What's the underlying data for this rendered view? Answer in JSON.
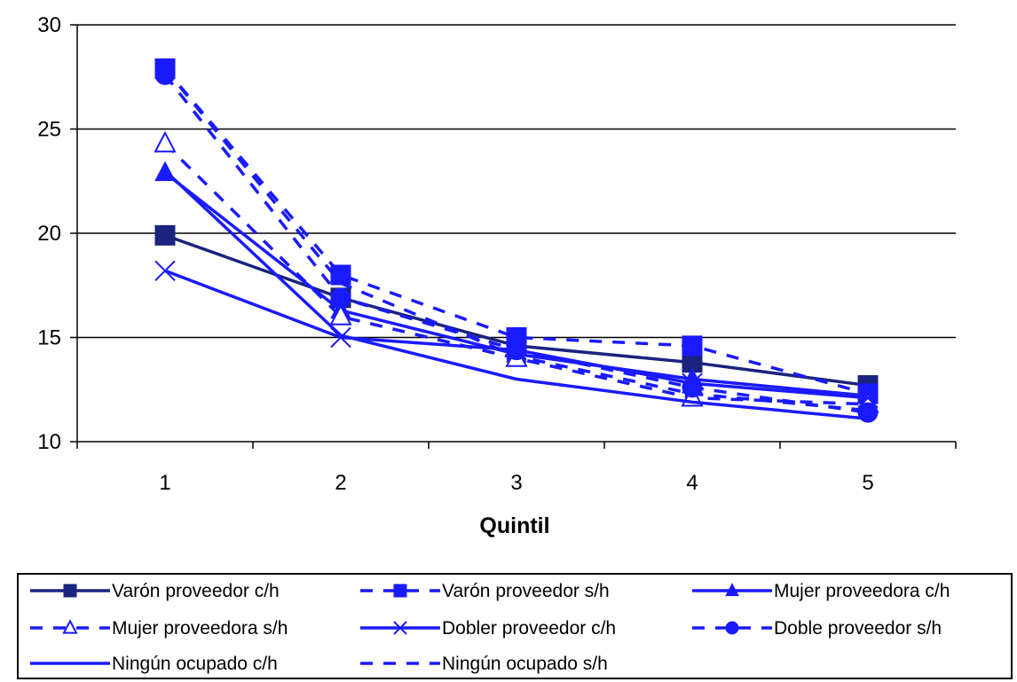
{
  "chart_data": {
    "type": "line",
    "title": "",
    "xlabel": "Quintil",
    "ylabel": "",
    "x": [
      1,
      2,
      3,
      4,
      5
    ],
    "ylim": [
      10,
      30
    ],
    "yticks": [
      10,
      15,
      20,
      25,
      30
    ],
    "grid": "horizontal",
    "legend_position": "bottom",
    "series": [
      {
        "name": "Varón proveedor c/h",
        "values": [
          19.9,
          16.9,
          14.6,
          13.8,
          12.7
        ],
        "color": "#1a237e",
        "dash": "solid",
        "marker": "square-filled"
      },
      {
        "name": "Varón proveedor s/h",
        "values": [
          27.9,
          18.0,
          15.0,
          14.6,
          12.3
        ],
        "color": "#1a1aff",
        "dash": "dashed",
        "marker": "square-filled"
      },
      {
        "name": "Mujer proveedora c/h",
        "values": [
          22.9,
          16.3,
          14.2,
          13.0,
          12.2
        ],
        "color": "#1a1aff",
        "dash": "solid",
        "marker": "triangle-filled"
      },
      {
        "name": "Mujer proveedora s/h",
        "values": [
          24.3,
          16.0,
          14.0,
          12.1,
          11.8
        ],
        "color": "#1a1aff",
        "dash": "dashed",
        "marker": "triangle-open"
      },
      {
        "name": "Dobler proveedor c/h",
        "values": [
          18.2,
          15.0,
          14.4,
          12.8,
          12.1
        ],
        "color": "#1a1aff",
        "dash": "solid",
        "marker": "x"
      },
      {
        "name": "Doble proveedor s/h",
        "values": [
          27.6,
          16.9,
          14.4,
          12.6,
          11.4
        ],
        "color": "#1a1aff",
        "dash": "dashed",
        "marker": "circle-filled"
      },
      {
        "name": "Ningún ocupado c/h",
        "values": [
          23.0,
          15.1,
          13.0,
          11.9,
          11.1
        ],
        "color": "#1a1aff",
        "dash": "solid",
        "marker": "none"
      },
      {
        "name": "Ningún ocupado s/h",
        "values": [
          27.9,
          17.6,
          14.1,
          12.3,
          11.5
        ],
        "color": "#1a1aff",
        "dash": "dashed",
        "marker": "none"
      }
    ]
  }
}
